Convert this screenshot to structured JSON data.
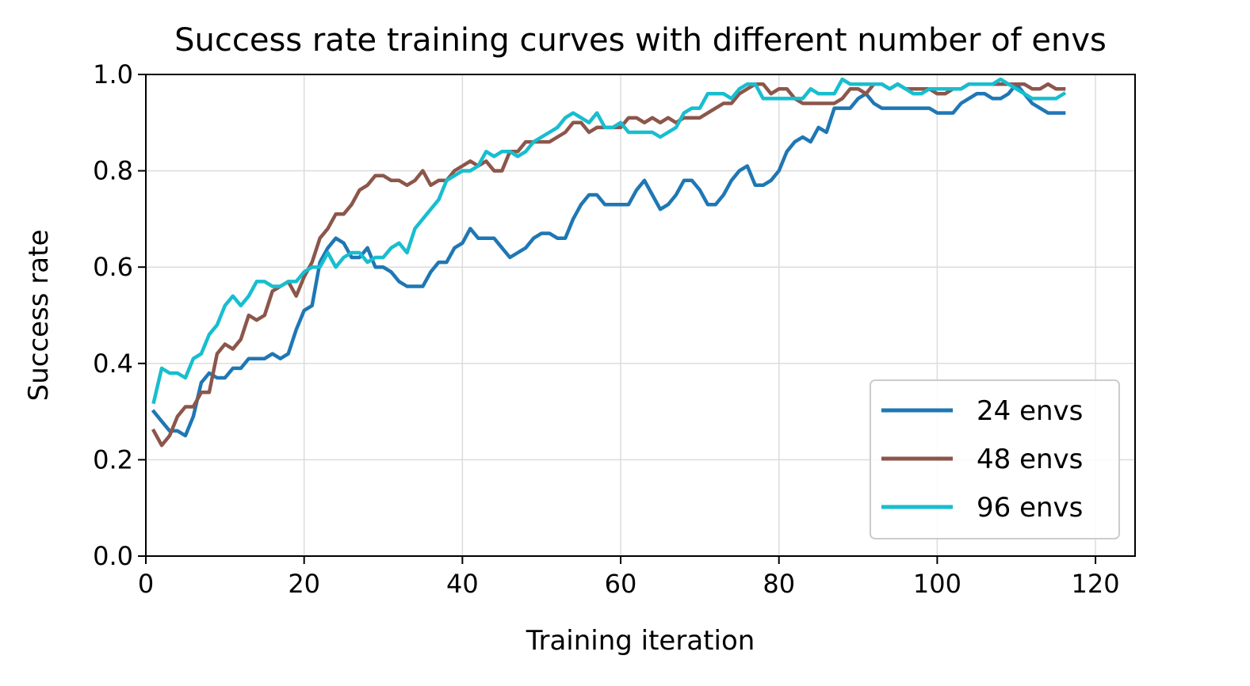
{
  "chart_data": {
    "type": "line",
    "title": "Success rate training curves with different number of envs",
    "xlabel": "Training iteration",
    "ylabel": "Success rate",
    "xlim": [
      0,
      125
    ],
    "ylim": [
      0,
      1.0
    ],
    "xticks": [
      0,
      20,
      40,
      60,
      80,
      100,
      120
    ],
    "yticks": [
      0.0,
      0.2,
      0.4,
      0.6,
      0.8,
      1.0
    ],
    "xtick_labels": [
      "0",
      "20",
      "40",
      "60",
      "80",
      "100",
      "120"
    ],
    "ytick_labels": [
      "0.0",
      "0.2",
      "0.4",
      "0.6",
      "0.8",
      "1.0"
    ],
    "grid": true,
    "legend_position": "lower-right",
    "series": [
      {
        "name": "24 envs",
        "color": "#1f77b4",
        "x": [
          1,
          2,
          3,
          4,
          5,
          6,
          7,
          8,
          9,
          10,
          11,
          12,
          13,
          14,
          15,
          16,
          17,
          18,
          19,
          20,
          21,
          22,
          23,
          24,
          25,
          26,
          27,
          28,
          29,
          30,
          31,
          32,
          33,
          34,
          35,
          36,
          37,
          38,
          39,
          40,
          41,
          42,
          43,
          44,
          45,
          46,
          47,
          48,
          49,
          50,
          51,
          52,
          53,
          54,
          55,
          56,
          57,
          58,
          59,
          60,
          61,
          62,
          63,
          64,
          65,
          66,
          67,
          68,
          69,
          70,
          71,
          72,
          73,
          74,
          75,
          76,
          77,
          78,
          79,
          80,
          81,
          82,
          83,
          84,
          85,
          86,
          87,
          88,
          89,
          90,
          91,
          92,
          93,
          94,
          95,
          96,
          97,
          98,
          99,
          100,
          101,
          102,
          103,
          104,
          105,
          106,
          107,
          108,
          109,
          110,
          111,
          112,
          113,
          114,
          115,
          116
        ],
        "y": [
          0.3,
          0.28,
          0.26,
          0.26,
          0.25,
          0.29,
          0.36,
          0.38,
          0.37,
          0.37,
          0.39,
          0.39,
          0.41,
          0.41,
          0.41,
          0.42,
          0.41,
          0.42,
          0.47,
          0.51,
          0.52,
          0.61,
          0.64,
          0.66,
          0.65,
          0.62,
          0.62,
          0.64,
          0.6,
          0.6,
          0.59,
          0.57,
          0.56,
          0.56,
          0.56,
          0.59,
          0.61,
          0.61,
          0.64,
          0.65,
          0.68,
          0.66,
          0.66,
          0.66,
          0.64,
          0.62,
          0.63,
          0.64,
          0.66,
          0.67,
          0.67,
          0.66,
          0.66,
          0.7,
          0.73,
          0.75,
          0.75,
          0.73,
          0.73,
          0.73,
          0.73,
          0.76,
          0.78,
          0.75,
          0.72,
          0.73,
          0.75,
          0.78,
          0.78,
          0.76,
          0.73,
          0.73,
          0.75,
          0.78,
          0.8,
          0.81,
          0.77,
          0.77,
          0.78,
          0.8,
          0.84,
          0.86,
          0.87,
          0.86,
          0.89,
          0.88,
          0.93,
          0.93,
          0.93,
          0.95,
          0.96,
          0.94,
          0.93,
          0.93,
          0.93,
          0.93,
          0.93,
          0.93,
          0.93,
          0.92,
          0.92,
          0.92,
          0.94,
          0.95,
          0.96,
          0.96,
          0.95,
          0.95,
          0.96,
          0.98,
          0.96,
          0.94,
          0.93,
          0.92,
          0.92,
          0.92
        ]
      },
      {
        "name": "48 envs",
        "color": "#8c564b",
        "x": [
          1,
          2,
          3,
          4,
          5,
          6,
          7,
          8,
          9,
          10,
          11,
          12,
          13,
          14,
          15,
          16,
          17,
          18,
          19,
          20,
          21,
          22,
          23,
          24,
          25,
          26,
          27,
          28,
          29,
          30,
          31,
          32,
          33,
          34,
          35,
          36,
          37,
          38,
          39,
          40,
          41,
          42,
          43,
          44,
          45,
          46,
          47,
          48,
          49,
          50,
          51,
          52,
          53,
          54,
          55,
          56,
          57,
          58,
          59,
          60,
          61,
          62,
          63,
          64,
          65,
          66,
          67,
          68,
          69,
          70,
          71,
          72,
          73,
          74,
          75,
          76,
          77,
          78,
          79,
          80,
          81,
          82,
          83,
          84,
          85,
          86,
          87,
          88,
          89,
          90,
          91,
          92,
          93,
          94,
          95,
          96,
          97,
          98,
          99,
          100,
          101,
          102,
          103,
          104,
          105,
          106,
          107,
          108,
          109,
          110,
          111,
          112,
          113,
          114,
          115,
          116
        ],
        "y": [
          0.26,
          0.23,
          0.25,
          0.29,
          0.31,
          0.31,
          0.34,
          0.34,
          0.42,
          0.44,
          0.43,
          0.45,
          0.5,
          0.49,
          0.5,
          0.55,
          0.56,
          0.57,
          0.54,
          0.58,
          0.61,
          0.66,
          0.68,
          0.71,
          0.71,
          0.73,
          0.76,
          0.77,
          0.79,
          0.79,
          0.78,
          0.78,
          0.77,
          0.78,
          0.8,
          0.77,
          0.78,
          0.78,
          0.8,
          0.81,
          0.82,
          0.81,
          0.82,
          0.8,
          0.8,
          0.84,
          0.84,
          0.86,
          0.86,
          0.86,
          0.86,
          0.87,
          0.88,
          0.9,
          0.9,
          0.88,
          0.89,
          0.89,
          0.89,
          0.89,
          0.91,
          0.91,
          0.9,
          0.91,
          0.9,
          0.91,
          0.9,
          0.91,
          0.91,
          0.91,
          0.92,
          0.93,
          0.94,
          0.94,
          0.96,
          0.97,
          0.98,
          0.98,
          0.96,
          0.97,
          0.97,
          0.95,
          0.94,
          0.94,
          0.94,
          0.94,
          0.94,
          0.95,
          0.97,
          0.97,
          0.96,
          0.98,
          0.98,
          0.97,
          0.98,
          0.97,
          0.97,
          0.97,
          0.97,
          0.96,
          0.96,
          0.97,
          0.97,
          0.98,
          0.98,
          0.98,
          0.98,
          0.98,
          0.98,
          0.98,
          0.98,
          0.97,
          0.97,
          0.98,
          0.97,
          0.97
        ]
      },
      {
        "name": "96 envs",
        "color": "#17becf",
        "x": [
          1,
          2,
          3,
          4,
          5,
          6,
          7,
          8,
          9,
          10,
          11,
          12,
          13,
          14,
          15,
          16,
          17,
          18,
          19,
          20,
          21,
          22,
          23,
          24,
          25,
          26,
          27,
          28,
          29,
          30,
          31,
          32,
          33,
          34,
          35,
          36,
          37,
          38,
          39,
          40,
          41,
          42,
          43,
          44,
          45,
          46,
          47,
          48,
          49,
          50,
          51,
          52,
          53,
          54,
          55,
          56,
          57,
          58,
          59,
          60,
          61,
          62,
          63,
          64,
          65,
          66,
          67,
          68,
          69,
          70,
          71,
          72,
          73,
          74,
          75,
          76,
          77,
          78,
          79,
          80,
          81,
          82,
          83,
          84,
          85,
          86,
          87,
          88,
          89,
          90,
          91,
          92,
          93,
          94,
          95,
          96,
          97,
          98,
          99,
          100,
          101,
          102,
          103,
          104,
          105,
          106,
          107,
          108,
          109,
          110,
          111,
          112,
          113,
          114,
          115,
          116
        ],
        "y": [
          0.32,
          0.39,
          0.38,
          0.38,
          0.37,
          0.41,
          0.42,
          0.46,
          0.48,
          0.52,
          0.54,
          0.52,
          0.54,
          0.57,
          0.57,
          0.56,
          0.56,
          0.57,
          0.57,
          0.59,
          0.6,
          0.6,
          0.63,
          0.6,
          0.62,
          0.63,
          0.63,
          0.61,
          0.62,
          0.62,
          0.64,
          0.65,
          0.63,
          0.68,
          0.7,
          0.72,
          0.74,
          0.78,
          0.79,
          0.8,
          0.8,
          0.81,
          0.84,
          0.83,
          0.84,
          0.84,
          0.83,
          0.84,
          0.86,
          0.87,
          0.88,
          0.89,
          0.91,
          0.92,
          0.91,
          0.9,
          0.92,
          0.89,
          0.89,
          0.9,
          0.88,
          0.88,
          0.88,
          0.88,
          0.87,
          0.88,
          0.89,
          0.92,
          0.93,
          0.93,
          0.96,
          0.96,
          0.96,
          0.95,
          0.97,
          0.98,
          0.98,
          0.95,
          0.95,
          0.95,
          0.95,
          0.95,
          0.95,
          0.97,
          0.96,
          0.96,
          0.96,
          0.99,
          0.98,
          0.98,
          0.98,
          0.98,
          0.98,
          0.97,
          0.98,
          0.97,
          0.96,
          0.96,
          0.97,
          0.97,
          0.97,
          0.97,
          0.97,
          0.98,
          0.98,
          0.98,
          0.98,
          0.99,
          0.98,
          0.97,
          0.96,
          0.95,
          0.95,
          0.95,
          0.95,
          0.96
        ]
      }
    ]
  }
}
